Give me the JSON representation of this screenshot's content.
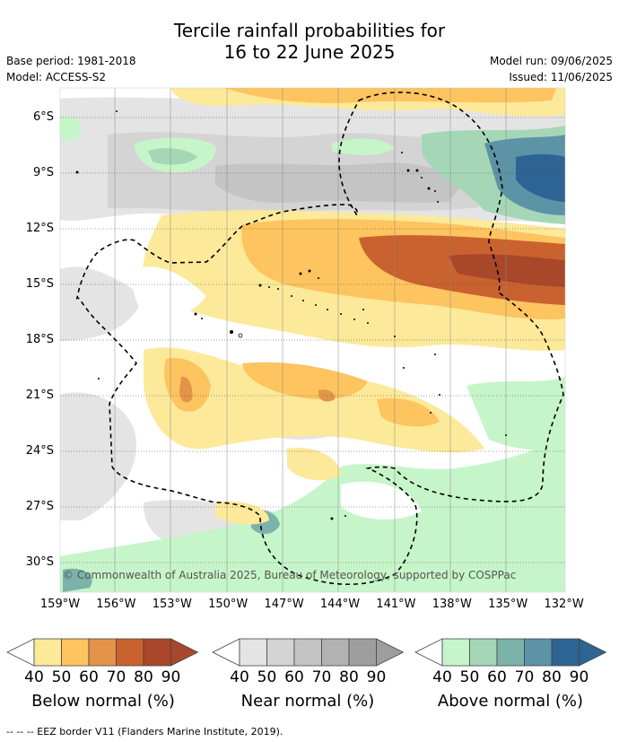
{
  "title_line1": "Tercile rainfall probabilities for",
  "title_line2": "16 to 22 June 2025",
  "meta_left": {
    "base_period": "Base period: 1981-2018",
    "model": "Model: ACCESS-S2"
  },
  "meta_right": {
    "model_run": "Model run: 09/06/2025",
    "issued": "Issued: 11/06/2025"
  },
  "map": {
    "lat_ticks": [
      "6°S",
      "9°S",
      "12°S",
      "15°S",
      "18°S",
      "21°S",
      "24°S",
      "27°S",
      "30°S"
    ],
    "lon_ticks": [
      "159°W",
      "156°W",
      "153°W",
      "150°W",
      "147°W",
      "144°W",
      "141°W",
      "138°W",
      "135°W",
      "132°W"
    ],
    "copyright": "© Commonwealth of Australia 2025, Bureau of Meteorology, supported by COSPPac"
  },
  "legends": [
    {
      "name": "below",
      "label": "Below normal (%)",
      "colors": [
        "#fde99a",
        "#fdc45f",
        "#e3944a",
        "#c9622e",
        "#a8472a"
      ],
      "ticks": [
        "40",
        "50",
        "60",
        "70",
        "80",
        "90"
      ]
    },
    {
      "name": "near",
      "label": "Near normal (%)",
      "colors": [
        "#e4e4e4",
        "#d4d4d4",
        "#c4c4c4",
        "#b2b2b2",
        "#9e9e9e"
      ],
      "ticks": [
        "40",
        "50",
        "60",
        "70",
        "80",
        "90"
      ]
    },
    {
      "name": "above",
      "label": "Above normal (%)",
      "colors": [
        "#c6f5c9",
        "#a5d7b6",
        "#7bb3ab",
        "#5c93a6",
        "#2e6493"
      ],
      "ticks": [
        "40",
        "50",
        "60",
        "70",
        "80",
        "90"
      ]
    }
  ],
  "footer": "-- -- -- EEZ border V11 (Flanders Marine Institute, 2019)."
}
